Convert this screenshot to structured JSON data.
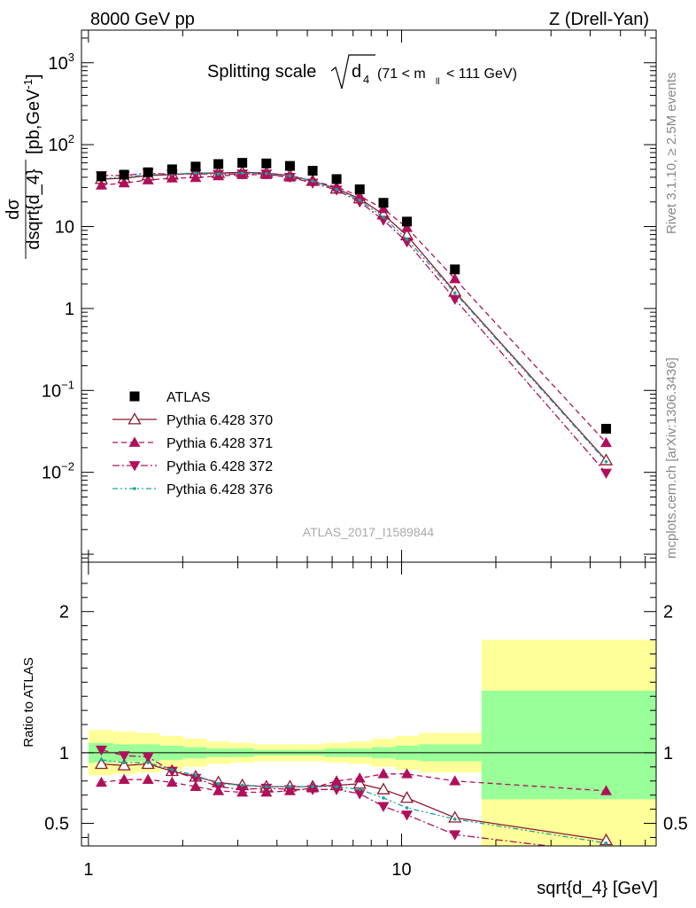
{
  "header": {
    "left": "8000 GeV pp",
    "right": "Z (Drell-Yan)"
  },
  "side_labels": {
    "rivet": "Rivet 3.1.10, ≥ 2.5M events",
    "mcplots": "mcplots.cern.ch [arXiv:1306.3436]"
  },
  "main_title": {
    "prefix": "Splitting scale",
    "symbol": "d",
    "symbol_sub": "4",
    "range_open": "(71 < m",
    "range_sub": "ll",
    "range_close": "< 111 GeV)"
  },
  "watermark": "ATLAS_2017_I1589844",
  "colors": {
    "atlas": "#000000",
    "p370": "#8b1a2e",
    "p371": "#b0105a",
    "p372": "#b0105a",
    "p376": "#1aa39a",
    "band_inner": "#99ff99",
    "band_outer": "#ffff99"
  },
  "chart_data": [
    {
      "type": "scatter",
      "panel": "main",
      "ylabel": {
        "num": "dσ",
        "den": "dsqrt{d_4}",
        "unit_open": "[pb,GeV",
        "unit_sup": "-1",
        "unit_close": "]"
      },
      "yscale": "log",
      "xscale": "log",
      "xlim": [
        0.95,
        65
      ],
      "ylim": [
        0.0008,
        2500
      ],
      "yticks": [
        {
          "v": 1000,
          "base": "10",
          "exp": "3"
        },
        {
          "v": 100,
          "base": "10",
          "exp": "2"
        },
        {
          "v": 10,
          "base": "10",
          "exp": ""
        },
        {
          "v": 1,
          "base": "1",
          "exp": ""
        },
        {
          "v": 0.1,
          "base": "10",
          "exp": "−1"
        },
        {
          "v": 0.01,
          "base": "10",
          "exp": "−2"
        }
      ],
      "x": [
        1.1,
        1.3,
        1.55,
        1.85,
        2.2,
        2.6,
        3.1,
        3.7,
        4.4,
        5.2,
        6.2,
        7.35,
        8.75,
        10.4,
        14.8,
        45
      ],
      "series": [
        {
          "name": "ATLAS",
          "marker": "square",
          "line": "none",
          "values": [
            41,
            43,
            46,
            50,
            54,
            58,
            60,
            59,
            55,
            48,
            38,
            28.5,
            19.5,
            11.5,
            3.0,
            0.034
          ]
        },
        {
          "name": "Pythia 6.428 370",
          "marker": "triangle-up-open",
          "line": "solid",
          "values": [
            38,
            39,
            42,
            43,
            45,
            45,
            46,
            45,
            42,
            36,
            29,
            22,
            14,
            7.8,
            1.6,
            0.014
          ]
        },
        {
          "name": "Pythia 6.428 371",
          "marker": "triangle-up",
          "line": "dashed",
          "values": [
            32,
            34,
            37,
            39,
            39.5,
            41.5,
            43,
            43,
            40,
            36,
            30.5,
            23.5,
            16.5,
            9.7,
            2.3,
            0.023
          ]
        },
        {
          "name": "Pythia 6.428 372",
          "marker": "triangle-down",
          "line": "dashdot",
          "values": [
            42,
            42,
            45,
            43.5,
            44,
            43.5,
            44,
            44,
            40,
            34,
            28,
            20,
            12,
            6.5,
            1.3,
            0.0098
          ]
        },
        {
          "name": "Pythia 6.428 376",
          "marker": "dot",
          "line": "dashdotdot",
          "values": [
            39,
            40,
            43,
            44,
            45,
            44,
            45,
            44.5,
            41.5,
            36,
            28.5,
            21,
            13,
            7,
            1.55,
            0.0135
          ]
        }
      ]
    },
    {
      "type": "line",
      "panel": "ratio",
      "ylabel": "Ratio to ATLAS",
      "xlabel": "sqrt{d_4} [GeV]",
      "xscale": "log",
      "xlim": [
        0.95,
        65
      ],
      "ylim": [
        0.34,
        2.35
      ],
      "yticks": [
        {
          "v": 0.5,
          "label": "0.5"
        },
        {
          "v": 1,
          "label": "1"
        },
        {
          "v": 2,
          "label": "2"
        }
      ],
      "xticks": [
        {
          "v": 1,
          "label": "1"
        },
        {
          "v": 10,
          "label": "10"
        }
      ],
      "bin_edges": [
        1.0,
        1.2,
        1.42,
        1.69,
        2.01,
        2.39,
        2.84,
        3.38,
        4.02,
        4.78,
        5.68,
        6.76,
        8.04,
        9.56,
        11.37,
        18.0,
        65.0
      ],
      "band_inner": {
        "lo": [
          0.93,
          0.94,
          0.94,
          0.95,
          0.96,
          0.97,
          0.97,
          0.98,
          0.98,
          0.98,
          0.97,
          0.97,
          0.96,
          0.95,
          0.94,
          0.67
        ],
        "hi": [
          1.07,
          1.06,
          1.06,
          1.05,
          1.04,
          1.03,
          1.03,
          1.02,
          1.02,
          1.02,
          1.03,
          1.03,
          1.04,
          1.05,
          1.06,
          1.44
        ]
      },
      "band_outer": {
        "lo": [
          0.84,
          0.85,
          0.86,
          0.88,
          0.9,
          0.92,
          0.93,
          0.94,
          0.94,
          0.94,
          0.93,
          0.92,
          0.9,
          0.88,
          0.86,
          0.0
        ],
        "hi": [
          1.16,
          1.15,
          1.14,
          1.12,
          1.1,
          1.08,
          1.07,
          1.06,
          1.06,
          1.06,
          1.07,
          1.08,
          1.1,
          1.12,
          1.14,
          1.8
        ]
      },
      "x": [
        1.1,
        1.3,
        1.55,
        1.85,
        2.2,
        2.6,
        3.1,
        3.7,
        4.4,
        5.2,
        6.2,
        7.35,
        8.75,
        10.4,
        14.8,
        45
      ],
      "series": [
        {
          "name": "Pythia 6.428 370",
          "marker": "triangle-up-open",
          "line": "solid",
          "values": [
            0.92,
            0.91,
            0.92,
            0.87,
            0.83,
            0.79,
            0.77,
            0.76,
            0.76,
            0.76,
            0.77,
            0.78,
            0.74,
            0.68,
            0.54,
            0.38
          ]
        },
        {
          "name": "Pythia 6.428 371",
          "marker": "triangle-up",
          "line": "dashed",
          "values": [
            0.79,
            0.81,
            0.81,
            0.79,
            0.76,
            0.73,
            0.72,
            0.72,
            0.73,
            0.75,
            0.8,
            0.82,
            0.85,
            0.85,
            0.8,
            0.73
          ]
        },
        {
          "name": "Pythia 6.428 372",
          "marker": "triangle-down",
          "line": "dashdot",
          "values": [
            1.02,
            0.98,
            0.97,
            0.87,
            0.82,
            0.76,
            0.74,
            0.75,
            0.74,
            0.74,
            0.74,
            0.71,
            0.62,
            0.56,
            0.42,
            0.29
          ]
        },
        {
          "name": "Pythia 6.428 376",
          "marker": "dot",
          "line": "dashdotdot",
          "values": [
            0.95,
            0.93,
            0.93,
            0.88,
            0.84,
            0.78,
            0.77,
            0.76,
            0.76,
            0.76,
            0.76,
            0.74,
            0.68,
            0.61,
            0.53,
            0.36
          ]
        }
      ]
    }
  ]
}
